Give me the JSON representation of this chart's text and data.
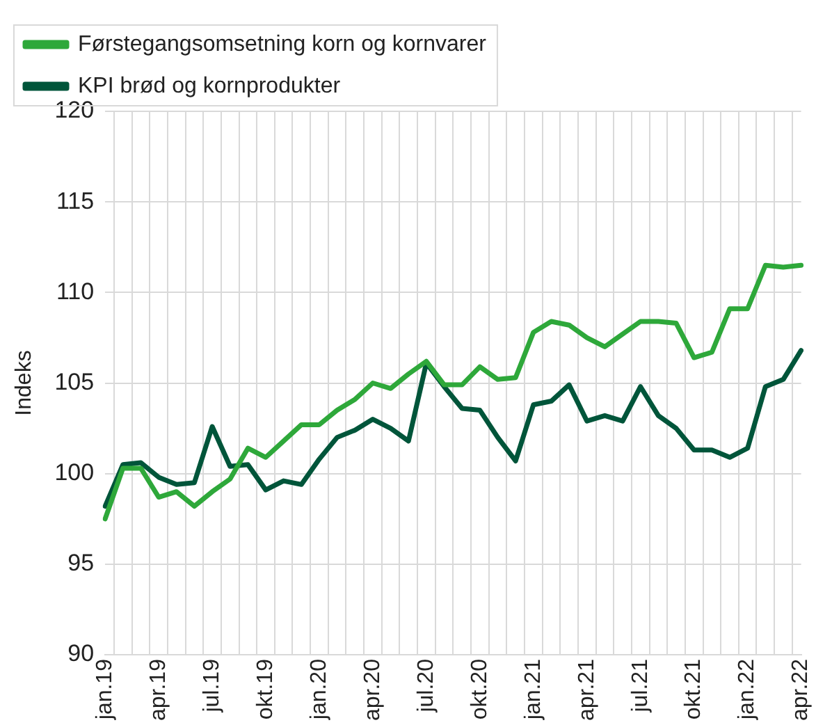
{
  "chart_data": {
    "type": "line",
    "ylabel": "Indeks",
    "categories": [
      "jan.19",
      null,
      null,
      "apr.19",
      null,
      null,
      "jul.19",
      null,
      null,
      "okt.19",
      null,
      null,
      "jan.20",
      null,
      null,
      "apr.20",
      null,
      null,
      "jul.20",
      null,
      null,
      "okt.20",
      null,
      null,
      "jan.21",
      null,
      null,
      "apr.21",
      null,
      null,
      "jul.21",
      null,
      null,
      "okt.21",
      null,
      null,
      "jan.22",
      null,
      null,
      "apr.22"
    ],
    "series": [
      {
        "name": "Førstegangsomsetning korn og kornvarer",
        "color": "#2ea83a",
        "values": [
          97.5,
          100.3,
          100.3,
          98.7,
          99.0,
          98.2,
          99.0,
          99.7,
          101.4,
          100.9,
          101.8,
          102.7,
          102.7,
          103.5,
          104.1,
          105.0,
          104.7,
          105.5,
          106.2,
          104.9,
          104.9,
          105.9,
          105.2,
          105.3,
          107.8,
          108.4,
          108.2,
          107.5,
          107.0,
          107.7,
          108.4,
          108.4,
          108.3,
          106.4,
          106.7,
          109.1,
          109.1,
          111.5,
          111.4,
          111.5
        ]
      },
      {
        "name": "KPI brød og kornprodukter",
        "color": "#00553a",
        "values": [
          98.2,
          100.5,
          100.6,
          99.8,
          99.4,
          99.5,
          102.6,
          100.4,
          100.5,
          99.1,
          99.6,
          99.4,
          100.8,
          102.0,
          102.4,
          103.0,
          102.5,
          101.8,
          106.1,
          104.8,
          103.6,
          103.5,
          102.0,
          100.7,
          103.8,
          104.0,
          104.9,
          102.9,
          103.2,
          102.9,
          104.8,
          103.2,
          102.5,
          101.3,
          101.3,
          100.9,
          101.4,
          104.8,
          105.2,
          106.8
        ]
      }
    ],
    "ylim": [
      90,
      120
    ],
    "yticks": [
      90,
      95,
      100,
      105,
      110,
      115,
      120
    ],
    "grid": true,
    "legend": "top",
    "marker": "none",
    "line_style": "solid"
  }
}
